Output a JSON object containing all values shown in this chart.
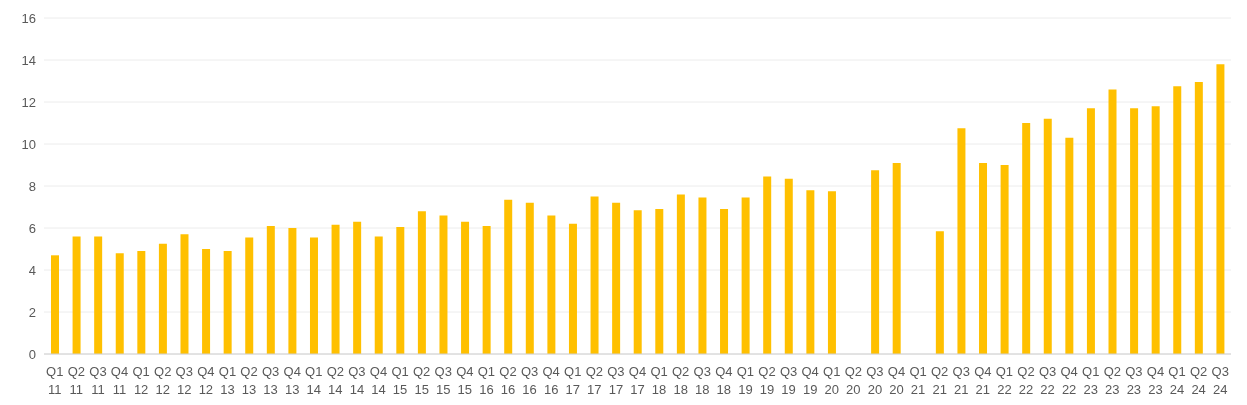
{
  "chart_data": {
    "type": "bar",
    "categories": [
      "Q1 11",
      "Q2 11",
      "Q3 11",
      "Q4 11",
      "Q1 12",
      "Q2 12",
      "Q3 12",
      "Q4 12",
      "Q1 13",
      "Q2 13",
      "Q3 13",
      "Q4 13",
      "Q1 14",
      "Q2 14",
      "Q3 14",
      "Q4 14",
      "Q1 15",
      "Q2 15",
      "Q3 15",
      "Q4 15",
      "Q1 16",
      "Q2 16",
      "Q3 16",
      "Q4 16",
      "Q1 17",
      "Q2 17",
      "Q3 17",
      "Q4 17",
      "Q1 18",
      "Q2 18",
      "Q3 18",
      "Q4 18",
      "Q1 19",
      "Q2 19",
      "Q3 19",
      "Q4 19",
      "Q1 20",
      "Q2 20",
      "Q3 20",
      "Q4 20",
      "Q1 21",
      "Q2 21",
      "Q3 21",
      "Q4 21",
      "Q1 22",
      "Q2 22",
      "Q3 22",
      "Q4 22",
      "Q1 23",
      "Q2 23",
      "Q3 23",
      "Q4 23",
      "Q1 24",
      "Q2 24",
      "Q3 24"
    ],
    "values": [
      4.7,
      5.6,
      5.6,
      4.8,
      4.9,
      5.25,
      5.7,
      5.0,
      4.9,
      5.55,
      6.1,
      6.0,
      5.55,
      6.15,
      6.3,
      5.6,
      6.05,
      6.8,
      6.6,
      6.3,
      6.1,
      7.35,
      7.2,
      6.6,
      6.2,
      7.5,
      7.2,
      6.85,
      6.9,
      7.6,
      7.45,
      6.9,
      7.45,
      8.45,
      8.35,
      7.8,
      7.75,
      null,
      8.75,
      9.1,
      null,
      5.85,
      10.75,
      9.1,
      9.0,
      11.0,
      11.2,
      10.3,
      11.7,
      12.6,
      11.7,
      11.8,
      12.75,
      12.95,
      13.8
    ],
    "color": "#ffc000",
    "ylim": [
      0,
      16
    ],
    "yticks": [
      0,
      2,
      4,
      6,
      8,
      10,
      12,
      14,
      16
    ],
    "grid": "y"
  }
}
